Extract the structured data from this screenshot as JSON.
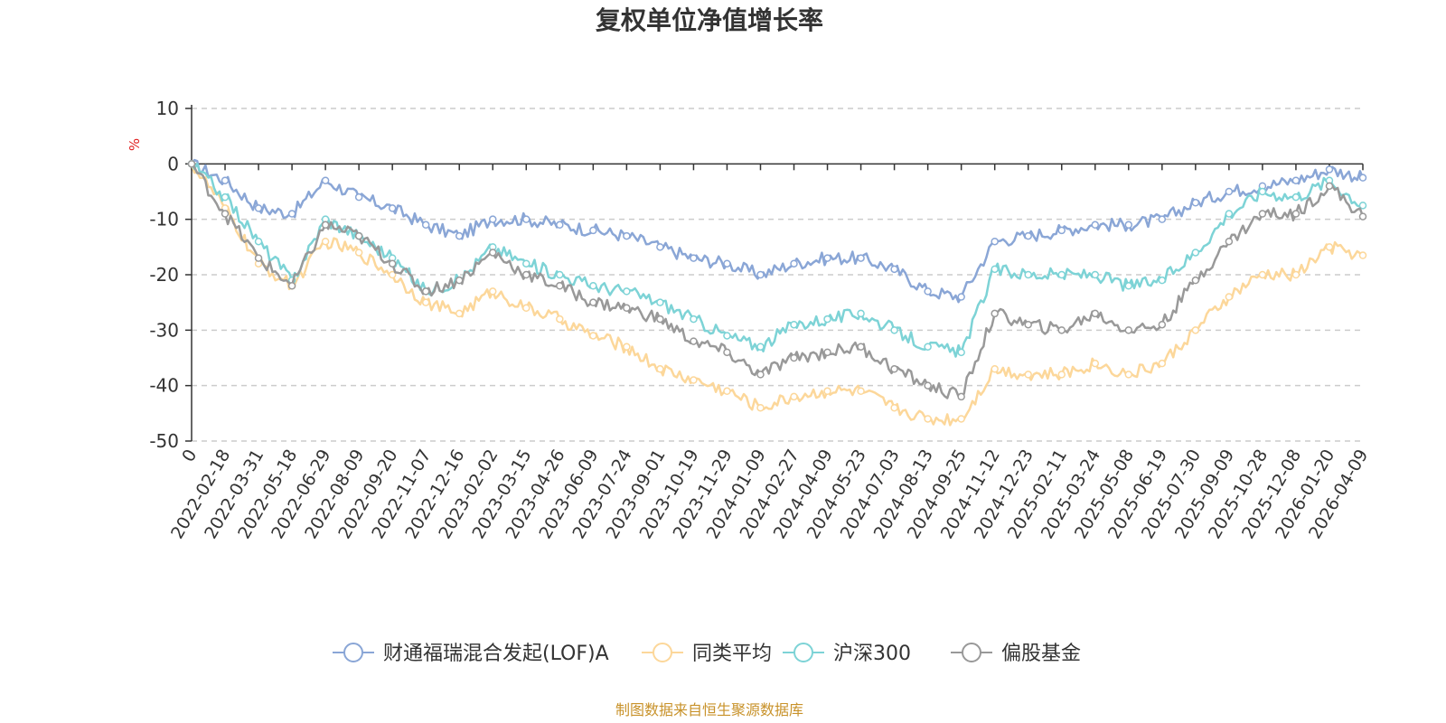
{
  "chart_data": {
    "type": "line",
    "title": "复权单位净值增长率",
    "ylabel": "%",
    "ylim": [
      -50,
      10
    ],
    "yticks": [
      "10",
      "0",
      "-10",
      "-20",
      "-30",
      "-40",
      "-50"
    ],
    "ytick_values": [
      10,
      0,
      -10,
      -20,
      -30,
      -40,
      -50
    ],
    "x": [
      "0",
      "2022-02-18",
      "2022-03-31",
      "2022-05-18",
      "2022-06-29",
      "2022-08-09",
      "2022-09-20",
      "2022-11-07",
      "2022-12-16",
      "2023-02-02",
      "2023-03-15",
      "2023-04-26",
      "2023-06-09",
      "2023-07-24",
      "2023-09-01",
      "2023-10-19",
      "2023-11-29",
      "2024-01-09",
      "2024-02-27",
      "2024-04-09",
      "2024-05-23",
      "2024-07-03",
      "2024-08-13",
      "2024-09-25",
      "2024-11-12",
      "2024-12-23",
      "2025-02-11",
      "2025-03-24",
      "2025-05-08",
      "2025-06-19",
      "2025-07-30",
      "2025-09-09",
      "2025-10-28",
      "2025-12-08",
      "2026-01-20",
      "2026-04-09"
    ],
    "series": [
      {
        "name": "财通福瑞混合发起(LOF)A",
        "color": "#8aa6d6",
        "values": [
          0,
          -3,
          -8,
          -9,
          -3,
          -6,
          -8,
          -11,
          -13,
          -10,
          -10,
          -11,
          -12,
          -13,
          -15,
          -17,
          -18,
          -20,
          -18,
          -17,
          -17,
          -19,
          -23,
          -24,
          -14,
          -13,
          -12,
          -11,
          -11,
          -10,
          -7,
          -5,
          -4,
          -3,
          -1,
          -2.5
        ]
      },
      {
        "name": "同类平均",
        "color": "#fcd79a",
        "values": [
          0,
          -8,
          -18,
          -22,
          -14,
          -16,
          -20,
          -25,
          -27,
          -23,
          -26,
          -28,
          -31,
          -33,
          -37,
          -39,
          -41,
          -44,
          -42,
          -41,
          -41,
          -44,
          -46,
          -46,
          -37,
          -38,
          -38,
          -36,
          -38,
          -36,
          -30,
          -24,
          -20,
          -20,
          -15,
          -16.5
        ]
      },
      {
        "name": "沪深300",
        "color": "#7dd3d6",
        "values": [
          0,
          -6,
          -14,
          -21,
          -10,
          -13,
          -17,
          -23,
          -21,
          -15,
          -18,
          -20,
          -22,
          -23,
          -25,
          -28,
          -31,
          -33,
          -29,
          -28,
          -27,
          -30,
          -33,
          -34,
          -19,
          -20,
          -20,
          -20,
          -22,
          -21,
          -16,
          -9,
          -5,
          -6,
          -3,
          -7.5
        ]
      },
      {
        "name": "偏股基金",
        "color": "#999999",
        "values": [
          0,
          -9,
          -17,
          -22,
          -11,
          -13,
          -18,
          -23,
          -21,
          -16,
          -20,
          -22,
          -25,
          -26,
          -28,
          -32,
          -34,
          -38,
          -35,
          -34,
          -33,
          -37,
          -40,
          -42,
          -27,
          -29,
          -30,
          -27,
          -30,
          -29,
          -21,
          -14,
          -9,
          -9,
          -4,
          -9.5
        ]
      }
    ],
    "legend": [
      "财通福瑞混合发起(LOF)A",
      "同类平均",
      "沪深300",
      "偏股基金"
    ],
    "legend_position": "bottom",
    "grid": true,
    "source": "制图数据来自恒生聚源数据库"
  }
}
